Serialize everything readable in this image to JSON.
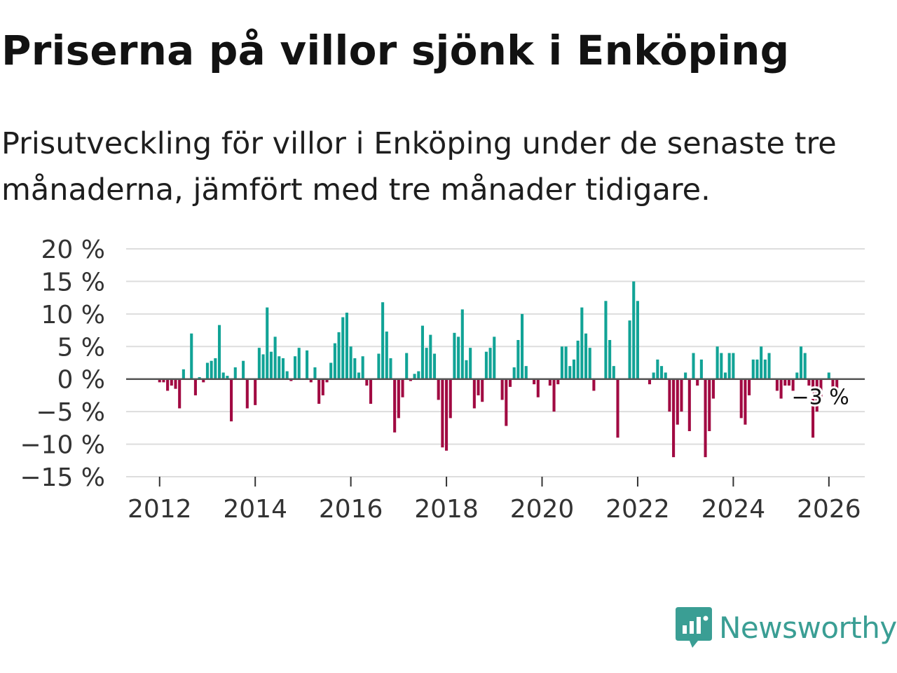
{
  "title": "Priserna på villor sjönk i Enköping",
  "subtitle": "Prisutveckling för villor i Enköping under de senaste tre månaderna, jämfört med tre månader tidigare.",
  "brand": {
    "name": "Newsworthy",
    "color": "#3a9e94",
    "icon": "newsworthy-logo-icon"
  },
  "colors": {
    "positive": "#11a396",
    "negative": "#a10a42",
    "zero_line": "#555555",
    "grid": "#dddddd"
  },
  "chart_data": {
    "type": "bar",
    "title": "Priserna på villor sjönk i Enköping",
    "xlabel": "",
    "ylabel": "",
    "unit": "%",
    "ylim": [
      -15,
      20
    ],
    "y_ticks": [
      20,
      15,
      10,
      5,
      0,
      -5,
      -10,
      -15
    ],
    "y_tick_labels": [
      "20 %",
      "15 %",
      "10 %",
      "5 %",
      "0 %",
      "−5 %",
      "−10 %",
      "−15 %"
    ],
    "x_ticks": [
      2012,
      2014,
      2016,
      2018,
      2020,
      2022,
      2024,
      2026
    ],
    "x_tick_labels": [
      "2012",
      "2014",
      "2016",
      "2018",
      "2020",
      "2022",
      "2024",
      "2026"
    ],
    "x_range": [
      2011.3,
      2026.75
    ],
    "x_start": 2012.0,
    "x_step": 0.08333,
    "values": [
      -0.5,
      -0.5,
      -1.8,
      -1,
      -1.5,
      -4.5,
      1.5,
      0,
      7,
      -2.5,
      0.3,
      -0.5,
      2.5,
      2.8,
      3.2,
      8.3,
      1,
      0.5,
      -6.5,
      1.8,
      0,
      2.8,
      -4.5,
      0,
      -4,
      4.8,
      3.8,
      11,
      4.2,
      6.5,
      3.5,
      3.2,
      1.2,
      -0.3,
      3.5,
      4.8,
      0,
      4.4,
      -0.5,
      1.8,
      -3.8,
      -2.5,
      -0.5,
      2.5,
      5.5,
      7.2,
      9.5,
      10.2,
      5,
      3.2,
      1,
      3.5,
      -1,
      -3.8,
      0,
      3.9,
      11.8,
      7.3,
      3.2,
      -8.2,
      -6,
      -2.8,
      4,
      -0.3,
      0.8,
      1.2,
      8.2,
      4.8,
      6.8,
      3.9,
      -3.2,
      -10.5,
      -11,
      -6,
      7.1,
      6.5,
      10.7,
      2.9,
      4.8,
      -4.5,
      -2.5,
      -3.5,
      4.2,
      4.8,
      6.5,
      0,
      -3.2,
      -7.2,
      -1.2,
      1.8,
      6,
      10,
      2,
      0,
      -0.8,
      -2.8,
      0,
      0,
      -1,
      -5,
      -0.8,
      5,
      5,
      2,
      3,
      5.9,
      11,
      7,
      4.8,
      -1.8,
      0,
      0,
      12,
      6,
      2,
      -9,
      0,
      0,
      9,
      15,
      12,
      0,
      0,
      -0.8,
      1,
      3,
      2,
      1,
      -5,
      -12,
      -7,
      -5,
      1,
      -8,
      4,
      -1,
      3,
      -12,
      -8,
      -3,
      5,
      4,
      1,
      4,
      4,
      0,
      -6,
      -7,
      -2.5,
      3,
      3,
      5,
      3,
      4,
      0,
      -1.8,
      -3,
      -1,
      -1,
      -1.8,
      1,
      5,
      4,
      -1,
      -9,
      -5,
      -3,
      0,
      1,
      -3,
      -3
    ],
    "annotation": {
      "label": "−3 %",
      "value": -3,
      "year": 2025.85
    }
  }
}
